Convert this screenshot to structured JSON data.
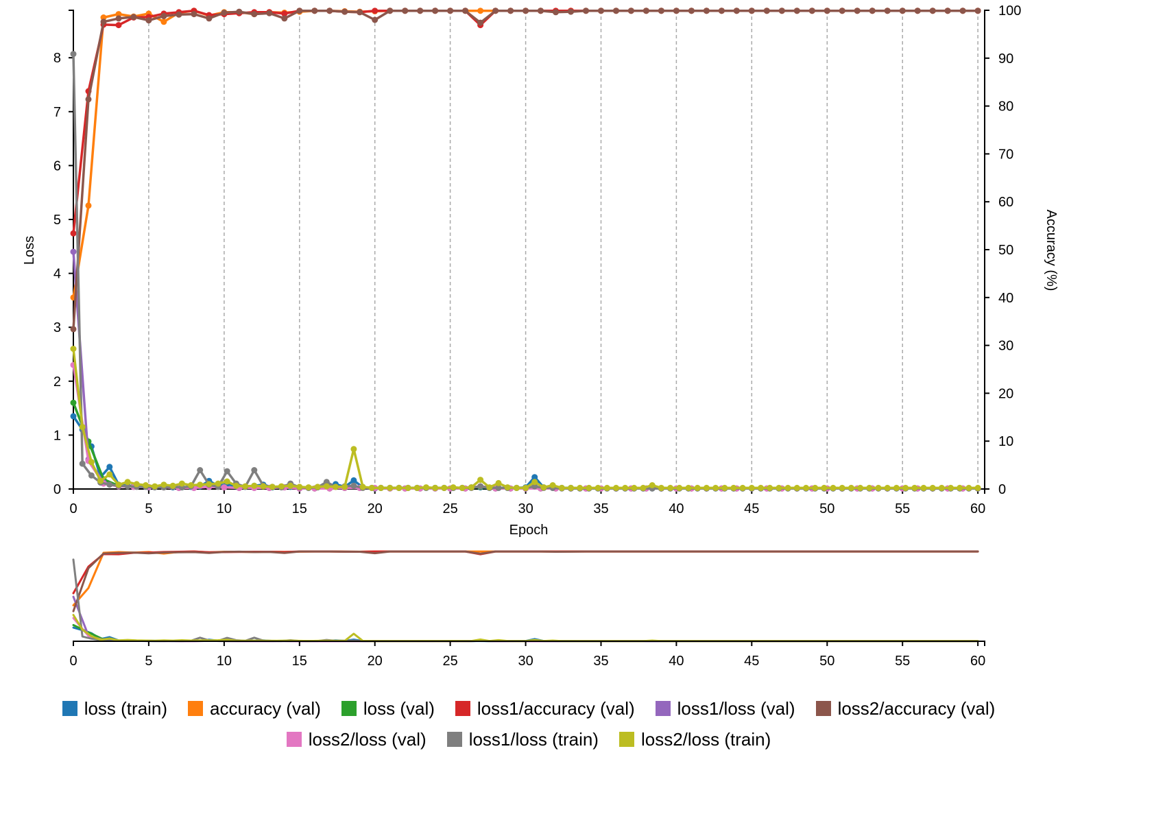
{
  "chart_data": {
    "type": "line",
    "xlabel": "Epoch",
    "ylabel": "Loss",
    "y2label": "Accuracy (%)",
    "xlim": [
      0,
      60.45
    ],
    "ylim": [
      0,
      8.88
    ],
    "y2lim": [
      0,
      100
    ],
    "x_ticks": [
      0,
      5,
      10,
      15,
      20,
      25,
      30,
      35,
      40,
      45,
      50,
      55,
      60
    ],
    "y_ticks": [
      0,
      1,
      2,
      3,
      4,
      5,
      6,
      7,
      8
    ],
    "y2_ticks": [
      0,
      10,
      20,
      30,
      40,
      50,
      60,
      70,
      80,
      90,
      100
    ],
    "x_grid": true,
    "legend": "bottom",
    "x_val": [
      0,
      1,
      2,
      3,
      4,
      5,
      6,
      7,
      8,
      9,
      10,
      11,
      12,
      13,
      14,
      15,
      16,
      17,
      18,
      19,
      20,
      21,
      22,
      23,
      24,
      25,
      26,
      27,
      28,
      29,
      30,
      31,
      32,
      33,
      34,
      35,
      36,
      37,
      38,
      39,
      40,
      41,
      42,
      43,
      44,
      45,
      46,
      47,
      48,
      49,
      50,
      51,
      52,
      53,
      54,
      55,
      56,
      57,
      58,
      59,
      60
    ],
    "x_train": [
      0,
      0.6,
      1.2,
      1.8,
      2.4,
      3,
      3.6,
      4.2,
      4.8,
      5.4,
      6,
      6.6,
      7.2,
      7.8,
      8.4,
      9,
      9.6,
      10.2,
      10.8,
      11.4,
      12,
      12.6,
      13.2,
      13.8,
      14.4,
      15,
      15.6,
      16.2,
      16.8,
      17.4,
      18,
      18.6,
      19.2,
      19.8,
      20.4,
      21,
      21.6,
      22.2,
      22.8,
      23.4,
      24,
      24.6,
      25.2,
      25.8,
      26.4,
      27,
      27.6,
      28.2,
      28.8,
      29.4,
      30,
      30.6,
      31.2,
      31.8,
      32.4,
      33,
      33.6,
      34.2,
      34.8,
      35.4,
      36,
      36.6,
      37.2,
      37.8,
      38.4,
      39,
      39.6,
      40.2,
      40.8,
      41.4,
      42,
      42.6,
      43.2,
      43.8,
      44.4,
      45,
      45.6,
      46.2,
      46.8,
      47.4,
      48,
      48.6,
      49.2,
      49.8,
      50.4,
      51,
      51.6,
      52.2,
      52.8,
      53.4,
      54,
      54.6,
      55.2,
      55.8,
      56.4,
      57,
      57.6,
      58.2,
      58.8,
      59.4,
      60
    ],
    "series": [
      {
        "name": "loss (train)",
        "color": "#1f77b4",
        "axis": "left",
        "values": [
          1.35,
          1.1,
          0.79,
          0.22,
          0.41,
          0.08,
          0.06,
          0.05,
          0.06,
          0.04,
          0.04,
          0.03,
          0.03,
          0.04,
          0.05,
          0.15,
          0.06,
          0.09,
          0.05,
          0.04,
          0.06,
          0.08,
          0.03,
          0.04,
          0.04,
          0.03,
          0.02,
          0.03,
          0.05,
          0.09,
          0.04,
          0.16,
          0.03,
          0.02,
          0.02,
          0.02,
          0.02,
          0.02,
          0.02,
          0.02,
          0.02,
          0.02,
          0.02,
          0.02,
          0.03,
          0.03,
          0.02,
          0.02,
          0.02,
          0.02,
          0.03,
          0.22,
          0.03,
          0.02,
          0.02,
          0.02,
          0.01,
          0.01,
          0.01,
          0.01,
          0.01,
          0.01,
          0.01,
          0.01,
          0.01,
          0.01,
          0.01,
          0.01,
          0.01,
          0.01,
          0.01,
          0.01,
          0.01,
          0.01,
          0.01,
          0.01,
          0.01,
          0.01,
          0.01,
          0.01,
          0.01,
          0.01,
          0.01,
          0.01,
          0.01,
          0.01,
          0.01,
          0.01,
          0.01,
          0.01,
          0.01,
          0.01,
          0.01,
          0.01,
          0.01,
          0.01,
          0.01,
          0.01,
          0.01,
          0.01,
          0.01
        ]
      },
      {
        "name": "accuracy (val)",
        "color": "#ff7f0e",
        "axis": "right",
        "values": [
          40.0,
          59.2,
          98.5,
          99.2,
          98.7,
          99.3,
          97.6,
          99.5,
          99.9,
          98.9,
          99.6,
          99.6,
          99.2,
          99.6,
          99.5,
          99.7,
          99.9,
          99.9,
          99.8,
          99.7,
          99.8,
          99.9,
          99.9,
          99.9,
          99.9,
          99.9,
          99.9,
          99.9,
          99.9,
          99.9,
          99.9,
          99.9,
          99.8,
          99.9,
          99.9,
          99.9,
          99.9,
          99.9,
          99.9,
          99.9,
          99.9,
          99.9,
          99.9,
          99.9,
          99.9,
          99.9,
          99.9,
          99.9,
          99.9,
          99.9,
          99.9,
          99.9,
          99.9,
          99.9,
          99.9,
          99.9,
          99.9,
          99.9,
          99.9,
          99.9,
          99.9
        ]
      },
      {
        "name": "loss (val)",
        "color": "#2ca02c",
        "axis": "left",
        "values": [
          1.6,
          0.88,
          0.18,
          0.06,
          0.05,
          0.03,
          0.03,
          0.02,
          0.03,
          0.04,
          0.03,
          0.02,
          0.03,
          0.02,
          0.03,
          0.01,
          0.01,
          0.01,
          0.02,
          0.02,
          0.01,
          0.01,
          0.01,
          0.01,
          0.01,
          0.01,
          0.01,
          0.04,
          0.01,
          0.01,
          0.01,
          0.01,
          0.01,
          0.01,
          0.01,
          0.01,
          0.01,
          0.01,
          0.01,
          0.01,
          0.01,
          0.01,
          0.01,
          0.01,
          0.01,
          0.01,
          0.01,
          0.01,
          0.01,
          0.01,
          0.01,
          0.01,
          0.01,
          0.01,
          0.01,
          0.01,
          0.01,
          0.01,
          0.01,
          0.01,
          0.01
        ]
      },
      {
        "name": "loss1/accuracy (val)",
        "color": "#d62728",
        "axis": "right",
        "values": [
          53.4,
          83.1,
          97.0,
          96.9,
          98.5,
          98.6,
          99.3,
          99.6,
          99.9,
          99.0,
          99.2,
          99.4,
          99.6,
          99.6,
          99.3,
          99.9,
          99.9,
          99.9,
          99.7,
          99.6,
          99.9,
          99.9,
          99.9,
          99.9,
          99.9,
          99.9,
          99.9,
          96.9,
          99.9,
          99.9,
          99.9,
          99.9,
          99.9,
          99.9,
          99.9,
          99.9,
          99.9,
          99.9,
          99.9,
          99.9,
          99.9,
          99.9,
          99.9,
          99.9,
          99.9,
          99.9,
          99.9,
          99.9,
          99.9,
          99.9,
          99.9,
          99.9,
          99.9,
          99.9,
          99.9,
          99.9,
          99.9,
          99.9,
          99.9,
          99.9,
          99.9
        ]
      },
      {
        "name": "loss1/loss (val)",
        "color": "#9467bd",
        "axis": "left",
        "values": [
          4.4,
          0.55,
          0.12,
          0.05,
          0.04,
          0.03,
          0.03,
          0.02,
          0.02,
          0.04,
          0.03,
          0.02,
          0.02,
          0.02,
          0.03,
          0.01,
          0.01,
          0.01,
          0.02,
          0.02,
          0.01,
          0.01,
          0.01,
          0.01,
          0.01,
          0.01,
          0.01,
          0.05,
          0.01,
          0.01,
          0.01,
          0.01,
          0.01,
          0.01,
          0.01,
          0.01,
          0.01,
          0.01,
          0.01,
          0.01,
          0.01,
          0.01,
          0.01,
          0.01,
          0.01,
          0.01,
          0.01,
          0.01,
          0.01,
          0.01,
          0.01,
          0.01,
          0.01,
          0.01,
          0.01,
          0.01,
          0.01,
          0.01,
          0.01,
          0.01,
          0.01
        ]
      },
      {
        "name": "loss2/accuracy (val)",
        "color": "#8c564b",
        "axis": "right",
        "values": [
          33.4,
          81.4,
          97.6,
          98.3,
          98.6,
          97.9,
          98.8,
          99.1,
          99.2,
          98.3,
          99.5,
          99.7,
          99.2,
          99.4,
          98.3,
          99.9,
          99.9,
          99.9,
          99.7,
          99.6,
          98.0,
          99.9,
          99.9,
          99.9,
          99.9,
          99.9,
          99.9,
          97.4,
          99.9,
          99.9,
          99.9,
          99.9,
          99.6,
          99.7,
          99.9,
          99.9,
          99.9,
          99.9,
          99.9,
          99.9,
          99.9,
          99.9,
          99.9,
          99.9,
          99.9,
          99.9,
          99.9,
          99.9,
          99.9,
          99.9,
          99.9,
          99.9,
          99.9,
          99.9,
          99.9,
          99.9,
          99.9,
          99.9,
          99.9,
          99.9,
          99.9
        ]
      },
      {
        "name": "loss2/loss (val)",
        "color": "#e377c2",
        "axis": "left",
        "values": [
          2.3,
          0.52,
          0.1,
          0.05,
          0.04,
          0.04,
          0.03,
          0.02,
          0.02,
          0.04,
          0.03,
          0.02,
          0.02,
          0.02,
          0.03,
          0.01,
          0.01,
          0.01,
          0.02,
          0.02,
          0.02,
          0.01,
          0.01,
          0.01,
          0.01,
          0.01,
          0.01,
          0.05,
          0.01,
          0.01,
          0.01,
          0.01,
          0.01,
          0.01,
          0.01,
          0.01,
          0.01,
          0.01,
          0.01,
          0.01,
          0.01,
          0.01,
          0.01,
          0.01,
          0.01,
          0.01,
          0.01,
          0.01,
          0.01,
          0.01,
          0.01,
          0.01,
          0.01,
          0.01,
          0.01,
          0.01,
          0.01,
          0.01,
          0.01,
          0.01,
          0.01
        ]
      },
      {
        "name": "loss1/loss (train)",
        "color": "#7f7f7f",
        "axis": "left",
        "values": [
          8.07,
          0.47,
          0.25,
          0.12,
          0.08,
          0.06,
          0.05,
          0.04,
          0.04,
          0.03,
          0.03,
          0.04,
          0.03,
          0.05,
          0.35,
          0.08,
          0.04,
          0.33,
          0.1,
          0.04,
          0.35,
          0.06,
          0.04,
          0.03,
          0.1,
          0.03,
          0.02,
          0.03,
          0.13,
          0.04,
          0.05,
          0.06,
          0.02,
          0.02,
          0.02,
          0.02,
          0.02,
          0.02,
          0.02,
          0.02,
          0.02,
          0.02,
          0.02,
          0.02,
          0.02,
          0.05,
          0.02,
          0.02,
          0.02,
          0.02,
          0.02,
          0.05,
          0.02,
          0.02,
          0.01,
          0.01,
          0.01,
          0.01,
          0.01,
          0.01,
          0.01,
          0.01,
          0.01,
          0.01,
          0.01,
          0.01,
          0.01,
          0.01,
          0.01,
          0.01,
          0.01,
          0.01,
          0.01,
          0.01,
          0.01,
          0.01,
          0.01,
          0.01,
          0.01,
          0.01,
          0.01,
          0.01,
          0.01,
          0.01,
          0.01,
          0.01,
          0.01,
          0.01,
          0.01,
          0.01,
          0.01,
          0.01,
          0.01,
          0.01,
          0.01,
          0.01,
          0.01,
          0.01,
          0.01,
          0.01,
          0.01
        ]
      },
      {
        "name": "loss2/loss (train)",
        "color": "#bcbd22",
        "axis": "left",
        "values": [
          2.6,
          1.15,
          0.5,
          0.15,
          0.27,
          0.08,
          0.13,
          0.09,
          0.07,
          0.05,
          0.08,
          0.06,
          0.1,
          0.07,
          0.08,
          0.09,
          0.1,
          0.14,
          0.06,
          0.05,
          0.06,
          0.05,
          0.04,
          0.05,
          0.06,
          0.04,
          0.03,
          0.04,
          0.05,
          0.04,
          0.04,
          0.74,
          0.04,
          0.02,
          0.02,
          0.02,
          0.02,
          0.02,
          0.02,
          0.03,
          0.02,
          0.02,
          0.03,
          0.02,
          0.03,
          0.17,
          0.03,
          0.11,
          0.03,
          0.02,
          0.02,
          0.13,
          0.03,
          0.07,
          0.02,
          0.02,
          0.02,
          0.02,
          0.02,
          0.02,
          0.02,
          0.02,
          0.02,
          0.02,
          0.07,
          0.02,
          0.02,
          0.02,
          0.02,
          0.02,
          0.02,
          0.02,
          0.02,
          0.02,
          0.02,
          0.02,
          0.02,
          0.02,
          0.02,
          0.02,
          0.02,
          0.02,
          0.02,
          0.02,
          0.02,
          0.02,
          0.02,
          0.02,
          0.02,
          0.02,
          0.02,
          0.02,
          0.02,
          0.02,
          0.02,
          0.02,
          0.02,
          0.02,
          0.02,
          0.02,
          0.02
        ]
      }
    ]
  }
}
